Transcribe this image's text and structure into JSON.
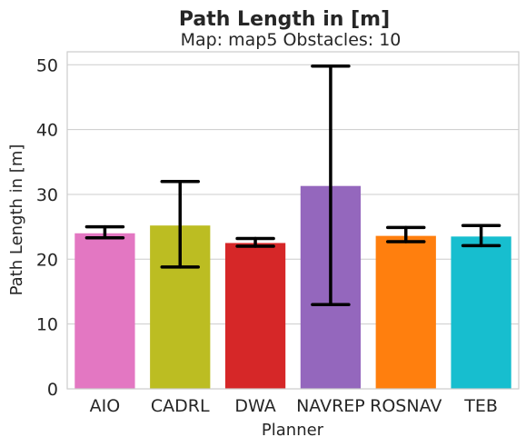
{
  "chart_data": {
    "type": "bar",
    "title": "Path Length in [m]",
    "subtitle": "Map: map5 Obstacles: 10",
    "xlabel": "Planner",
    "ylabel": "Path Length in [m]",
    "ylim": [
      0,
      52
    ],
    "yticks": [
      0,
      10,
      20,
      30,
      40,
      50
    ],
    "grid": true,
    "categories": [
      "AIO",
      "CADRL",
      "DWA",
      "NAVREP",
      "ROSNAV",
      "TEB"
    ],
    "values": [
      24.0,
      25.2,
      22.5,
      31.3,
      23.6,
      23.5
    ],
    "error_low": [
      23.3,
      18.8,
      22.0,
      13.0,
      22.7,
      22.1
    ],
    "error_high": [
      25.0,
      32.0,
      23.2,
      49.8,
      24.9,
      25.2
    ],
    "colors": [
      "#e377c2",
      "#bcbd22",
      "#d62728",
      "#9467bd",
      "#ff7f0e",
      "#17becf"
    ]
  }
}
